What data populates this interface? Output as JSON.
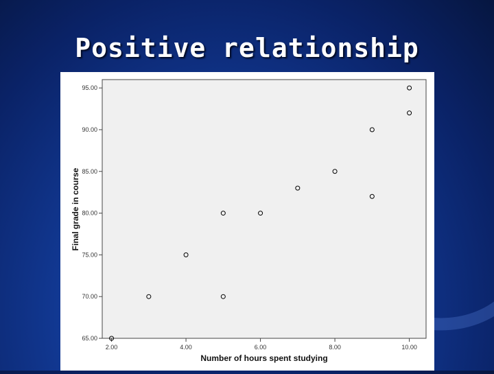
{
  "slide": {
    "title": "Positive relationship"
  },
  "chart_data": {
    "type": "scatter",
    "xlabel": "Number of hours spent studying",
    "ylabel": "Final grade in course",
    "xlim": [
      1.75,
      10.45
    ],
    "ylim": [
      65,
      96
    ],
    "x_ticks": [
      2,
      4,
      6,
      8,
      10
    ],
    "x_tick_labels": [
      "2.00",
      "4.00",
      "6.00",
      "8.00",
      "10.00"
    ],
    "y_ticks": [
      65,
      70,
      75,
      80,
      85,
      90,
      95
    ],
    "y_tick_labels": [
      "65.00",
      "70.00",
      "75.00",
      "80.00",
      "85.00",
      "90.00",
      "95.00"
    ],
    "grid": false,
    "plot_background": "#f0f0f0",
    "point_color": "#000000",
    "points": [
      {
        "x": 2,
        "y": 65
      },
      {
        "x": 3,
        "y": 70
      },
      {
        "x": 4,
        "y": 75
      },
      {
        "x": 5,
        "y": 80
      },
      {
        "x": 5,
        "y": 70
      },
      {
        "x": 6,
        "y": 80
      },
      {
        "x": 7,
        "y": 83
      },
      {
        "x": 8,
        "y": 85
      },
      {
        "x": 9,
        "y": 90
      },
      {
        "x": 9,
        "y": 82
      },
      {
        "x": 10,
        "y": 95
      },
      {
        "x": 10,
        "y": 92
      }
    ]
  }
}
